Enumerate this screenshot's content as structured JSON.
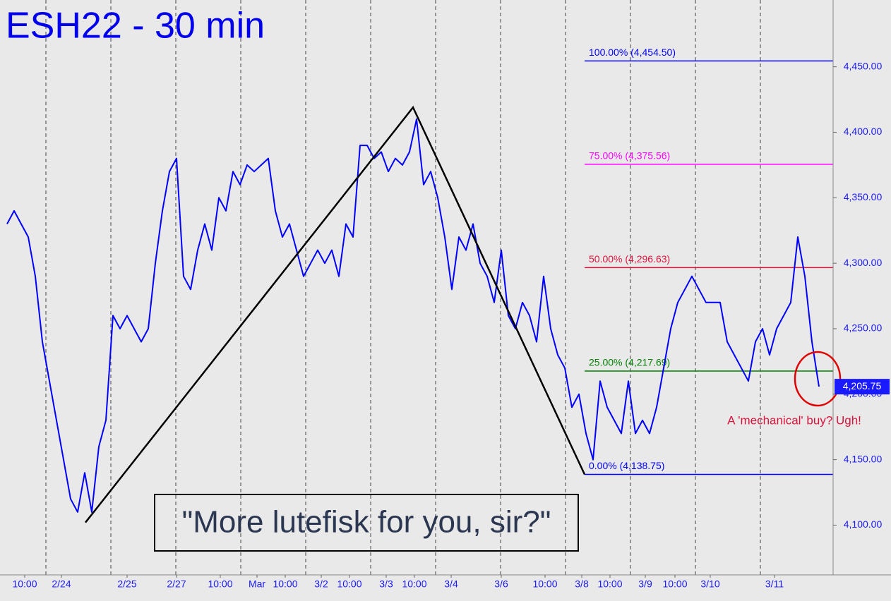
{
  "chart_data": {
    "type": "line",
    "title": "ESH22 - 30 min",
    "quote": "\"More lutefisk for you, sir?\"",
    "annotation": "A 'mechanical' buy? Ugh!",
    "xlim": [
      0,
      118
    ],
    "ylim": [
      4062,
      4501
    ],
    "yticks": [
      {
        "value": 4100,
        "label": "4,100.00"
      },
      {
        "value": 4150,
        "label": "4,150.00"
      },
      {
        "value": 4200,
        "label": "4,200.00"
      },
      {
        "value": 4250,
        "label": "4,250.00"
      },
      {
        "value": 4300,
        "label": "4,300.00"
      },
      {
        "value": 4350,
        "label": "4,350.00"
      },
      {
        "value": 4400,
        "label": "4,400.00"
      },
      {
        "value": 4450,
        "label": "4,450.00"
      }
    ],
    "xticks": [
      {
        "value": 3.5,
        "label": "10:00"
      },
      {
        "value": 8.7,
        "label": "2/24"
      },
      {
        "value": 18,
        "label": "2/25"
      },
      {
        "value": 25,
        "label": "2/27"
      },
      {
        "value": 31.2,
        "label": "10:00"
      },
      {
        "value": 36.4,
        "label": "Mar"
      },
      {
        "value": 40.4,
        "label": "10:00"
      },
      {
        "value": 45.5,
        "label": "3/2"
      },
      {
        "value": 49.5,
        "label": "10:00"
      },
      {
        "value": 54.7,
        "label": "3/3"
      },
      {
        "value": 58.7,
        "label": "10:00"
      },
      {
        "value": 63.9,
        "label": "3/4"
      },
      {
        "value": 71,
        "label": "3/6"
      },
      {
        "value": 77.2,
        "label": "10:00"
      },
      {
        "value": 82.4,
        "label": "3/8"
      },
      {
        "value": 86.4,
        "label": "10:00"
      },
      {
        "value": 91.4,
        "label": "3/9"
      },
      {
        "value": 95.6,
        "label": "10:00"
      },
      {
        "value": 100.6,
        "label": "3/10"
      },
      {
        "value": 109.7,
        "label": "3/11"
      }
    ],
    "xgrid": [
      6.5,
      15.7,
      24.9,
      34.1,
      43.3,
      52.5,
      61.7,
      70.9,
      80.1,
      89.3,
      98.5,
      107.7
    ],
    "series": [
      {
        "color": "#0000ff",
        "x": [
          1,
          2,
          3,
          4,
          5,
          6,
          7,
          8,
          9,
          10,
          11,
          12,
          13,
          14,
          15,
          16,
          17,
          18,
          19,
          20,
          21,
          22,
          23,
          24,
          25,
          26,
          27,
          28,
          29,
          30,
          31,
          32,
          33,
          34,
          35,
          36,
          37,
          38,
          39,
          40,
          41,
          42,
          43,
          44,
          45,
          46,
          47,
          48,
          49,
          50,
          51,
          52,
          53,
          54,
          55,
          56,
          57,
          58,
          59,
          60,
          61,
          62,
          63,
          64,
          65,
          66,
          67,
          68,
          69,
          70,
          71,
          72,
          73,
          74,
          75,
          76,
          77,
          78,
          79,
          80,
          81,
          82,
          83,
          84,
          85,
          86,
          87,
          88,
          89,
          90,
          91,
          92,
          93,
          94,
          95,
          96,
          97,
          98,
          99,
          100,
          101,
          102,
          103,
          104,
          105,
          106,
          107,
          108,
          109,
          110,
          111,
          112,
          113,
          114,
          115,
          116
        ],
        "values": [
          4330,
          4340,
          4330,
          4320,
          4290,
          4240,
          4210,
          4180,
          4150,
          4120,
          4110,
          4140,
          4110,
          4160,
          4180,
          4260,
          4250,
          4260,
          4250,
          4240,
          4250,
          4300,
          4340,
          4370,
          4380,
          4290,
          4280,
          4310,
          4330,
          4310,
          4350,
          4340,
          4370,
          4360,
          4375,
          4370,
          4375,
          4380,
          4340,
          4320,
          4330,
          4310,
          4290,
          4300,
          4310,
          4300,
          4310,
          4290,
          4330,
          4320,
          4390,
          4390,
          4380,
          4385,
          4370,
          4380,
          4375,
          4385,
          4410,
          4360,
          4370,
          4350,
          4320,
          4280,
          4320,
          4310,
          4330,
          4300,
          4290,
          4270,
          4310,
          4260,
          4250,
          4270,
          4260,
          4240,
          4290,
          4250,
          4230,
          4220,
          4190,
          4200,
          4170,
          4150,
          4210,
          4190,
          4180,
          4170,
          4210,
          4170,
          4180,
          4170,
          4190,
          4220,
          4250,
          4270,
          4280,
          4290,
          4280,
          4270,
          4270,
          4270,
          4240,
          4230,
          4220,
          4210,
          4240,
          4250,
          4230,
          4250,
          4260,
          4270,
          4320,
          4290,
          4240,
          4205.75
        ]
      }
    ],
    "pattern": {
      "color": "#000000",
      "x": [
        12.1,
        58.5,
        82.8
      ],
      "values": [
        4102,
        4419,
        4138.75
      ]
    },
    "levels": [
      {
        "label": "100.00% (4,454.50)",
        "value": 4454.5,
        "color": "#0000ff"
      },
      {
        "label": "75.00% (4,375.56)",
        "value": 4375.56,
        "color": "#ff00ff"
      },
      {
        "label": "50.00% (4,296.63)",
        "value": 4296.63,
        "color": "#dc143c"
      },
      {
        "label": "25.00% (4,217.69)",
        "value": 4217.69,
        "color": "#008000"
      },
      {
        "label": "0.00% (4,138.75)",
        "value": 4138.75,
        "color": "#0000ff"
      }
    ],
    "last_price": {
      "value": 4205.75,
      "label": "4,205.75"
    }
  }
}
